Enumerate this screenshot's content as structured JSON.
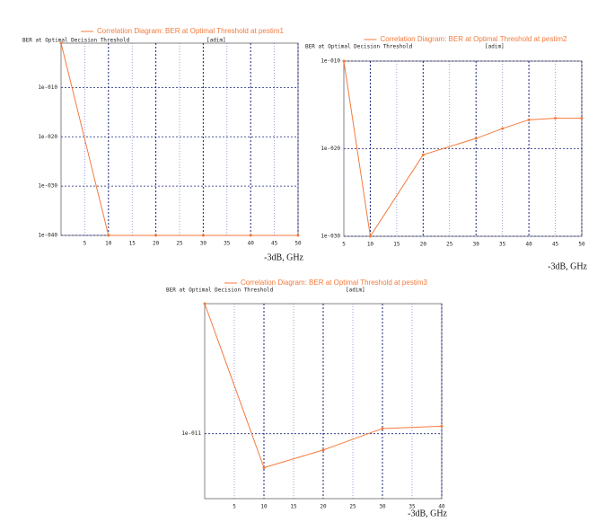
{
  "chart_data": [
    {
      "type": "line",
      "ylabel": "BER at Optimal Decision Threshold",
      "yunit": "[adim]",
      "xlabel": "-3dB, GHz",
      "x": [
        0,
        10,
        20,
        30,
        40,
        50
      ],
      "series": [
        {
          "name": "Correlation Diagram: BER at Optimal Threshold at pestim1",
          "color": "#f47a3c",
          "values": [
            0.1,
            1e-40,
            1e-40,
            1e-40,
            1e-40,
            1e-40
          ]
        }
      ],
      "xlim": [
        0,
        50
      ],
      "xticks": [
        5,
        10,
        15,
        20,
        25,
        30,
        35,
        40,
        45,
        50
      ],
      "ylim": [
        1e-40,
        0.1
      ],
      "log_y": true,
      "grid": true,
      "yticks": [
        {
          "value": 1e-40,
          "label": "1e-040"
        },
        {
          "value": 1e-30,
          "label": "1e-030"
        },
        {
          "value": 1e-20,
          "label": "1e-020"
        },
        {
          "value": 1e-10,
          "label": "1e-010"
        }
      ]
    },
    {
      "type": "line",
      "ylabel": "BER at Optimal Decision Threshold",
      "yunit": "[adim]",
      "xlabel": "-3dB, GHz",
      "x": [
        5,
        10,
        20,
        30,
        35,
        40,
        45,
        50
      ],
      "series": [
        {
          "name": "Correlation Diagram: BER at Optimal Threshold at pestim2",
          "color": "#f47a3c",
          "values": [
            1e-10,
            1e-30,
            2e-21,
            1.5e-19,
            2e-18,
            2e-17,
            3e-17,
            3e-17
          ]
        }
      ],
      "xlim": [
        5,
        50
      ],
      "xticks": [
        5,
        10,
        15,
        20,
        25,
        30,
        35,
        40,
        45,
        50
      ],
      "ylim": [
        1e-30,
        1e-10
      ],
      "log_y": true,
      "grid": true,
      "yticks": [
        {
          "value": 1e-30,
          "label": "1e-030"
        },
        {
          "value": 1e-20,
          "label": "1e-020"
        },
        {
          "value": 1e-10,
          "label": "1e-010"
        }
      ]
    },
    {
      "type": "line",
      "ylabel": "BER at Optimal Decision Threshold",
      "yunit": "[adim]",
      "xlabel": "-3dB, GHz",
      "x": [
        0,
        10,
        20,
        30,
        40
      ],
      "series": [
        {
          "name": "Correlation Diagram: BER at Optimal Threshold at pestim3",
          "color": "#f47a3c",
          "values": [
            1e-09,
            3e-12,
            5.6e-12,
            1.2e-11,
            1.3e-11
          ]
        }
      ],
      "xlim": [
        0,
        40
      ],
      "xticks": [
        5,
        10,
        15,
        20,
        25,
        30,
        35,
        40
      ],
      "ylim": [
        1e-12,
        1e-09
      ],
      "log_y": true,
      "grid": true,
      "yticks": [
        {
          "value": 1e-11,
          "label": "1e-011"
        }
      ]
    }
  ]
}
